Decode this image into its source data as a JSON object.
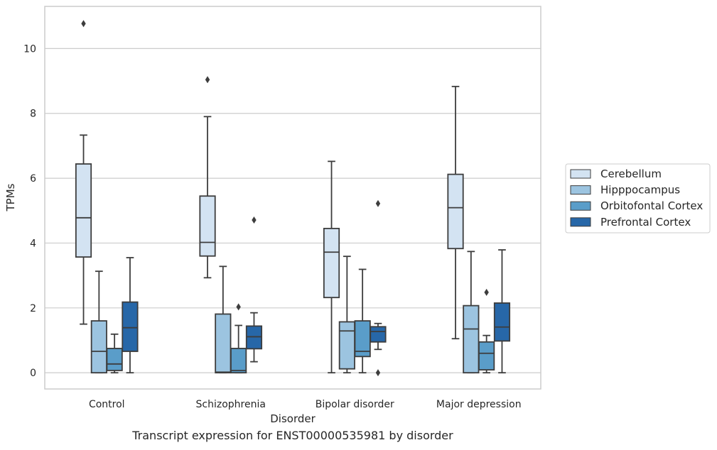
{
  "caption": "Transcript expression for ENST00000535981 by disorder",
  "chart_data": {
    "type": "box",
    "xlabel": "Disorder",
    "ylabel": "TPMs",
    "categories": [
      "Control",
      "Schizophrenia",
      "Bipolar disorder",
      "Major depression"
    ],
    "ylim": [
      -0.5,
      11.3
    ],
    "yticks": [
      0,
      2,
      4,
      6,
      8,
      10
    ],
    "grid": "horizontal",
    "legend_position": "right",
    "series": [
      {
        "name": "Cerebellum",
        "color": "#d3e3f2",
        "boxes": [
          {
            "whislo": 1.5,
            "q1": 3.57,
            "med": 4.78,
            "q3": 6.44,
            "whishi": 7.33,
            "fliers": [
              10.77
            ]
          },
          {
            "whislo": 2.93,
            "q1": 3.6,
            "med": 4.02,
            "q3": 5.45,
            "whishi": 7.9,
            "fliers": [
              9.04
            ]
          },
          {
            "whislo": 0.0,
            "q1": 2.32,
            "med": 3.72,
            "q3": 4.45,
            "whishi": 6.52,
            "fliers": []
          },
          {
            "whislo": 1.05,
            "q1": 3.83,
            "med": 5.09,
            "q3": 6.12,
            "whishi": 8.83,
            "fliers": []
          }
        ]
      },
      {
        "name": "Hipppocampus",
        "color": "#9cc4e0",
        "boxes": [
          {
            "whislo": 0.0,
            "q1": 0.0,
            "med": 0.66,
            "q3": 1.6,
            "whishi": 3.13,
            "fliers": []
          },
          {
            "whislo": 0.0,
            "q1": 0.0,
            "med": 0.02,
            "q3": 1.81,
            "whishi": 3.28,
            "fliers": []
          },
          {
            "whislo": 0.0,
            "q1": 0.12,
            "med": 1.29,
            "q3": 1.57,
            "whishi": 3.59,
            "fliers": []
          },
          {
            "whislo": 0.0,
            "q1": 0.0,
            "med": 1.35,
            "q3": 2.07,
            "whishi": 3.74,
            "fliers": []
          }
        ]
      },
      {
        "name": "Orbitofontal Cortex",
        "color": "#5a9dc9",
        "boxes": [
          {
            "whislo": 0.0,
            "q1": 0.07,
            "med": 0.27,
            "q3": 0.75,
            "whishi": 1.19,
            "fliers": []
          },
          {
            "whislo": 0.0,
            "q1": 0.0,
            "med": 0.07,
            "q3": 0.75,
            "whishi": 1.46,
            "fliers": [
              2.03
            ]
          },
          {
            "whislo": 0.0,
            "q1": 0.5,
            "med": 0.66,
            "q3": 1.6,
            "whishi": 3.19,
            "fliers": []
          },
          {
            "whislo": 0.0,
            "q1": 0.09,
            "med": 0.6,
            "q3": 0.95,
            "whishi": 1.15,
            "fliers": [
              2.48
            ]
          }
        ]
      },
      {
        "name": "Prefrontal Cortex",
        "color": "#2767a8",
        "boxes": [
          {
            "whislo": 0.0,
            "q1": 0.66,
            "med": 1.39,
            "q3": 2.18,
            "whishi": 3.55,
            "fliers": []
          },
          {
            "whislo": 0.34,
            "q1": 0.74,
            "med": 1.11,
            "q3": 1.44,
            "whishi": 1.85,
            "fliers": [
              4.71
            ]
          },
          {
            "whislo": 0.72,
            "q1": 0.95,
            "med": 1.27,
            "q3": 1.42,
            "whishi": 1.52,
            "fliers": [
              5.22,
              0.0
            ]
          },
          {
            "whislo": 0.0,
            "q1": 0.98,
            "med": 1.41,
            "q3": 2.15,
            "whishi": 3.79,
            "fliers": []
          }
        ]
      }
    ]
  }
}
